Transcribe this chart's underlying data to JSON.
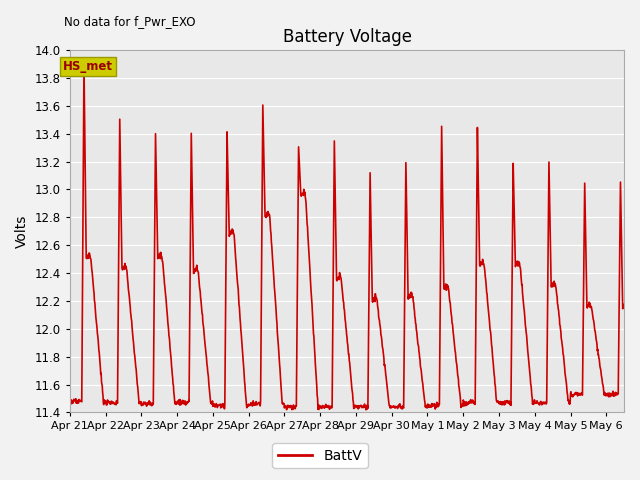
{
  "title": "Battery Voltage",
  "ylabel": "Volts",
  "note": "No data for f_Pwr_EXO",
  "legend_label": "BattV",
  "line_color": "#cc0000",
  "fig_facecolor": "#f2f2f2",
  "plot_facecolor": "#e8e8e8",
  "ylim": [
    11.4,
    14.0
  ],
  "xlim": [
    0,
    15.5
  ],
  "yticks": [
    11.4,
    11.6,
    11.8,
    12.0,
    12.2,
    12.4,
    12.6,
    12.8,
    13.0,
    13.2,
    13.4,
    13.6,
    13.8,
    14.0
  ],
  "xtick_positions": [
    0,
    1,
    2,
    3,
    4,
    5,
    6,
    7,
    8,
    9,
    10,
    11,
    12,
    13,
    14,
    15
  ],
  "xtick_labels": [
    "Apr 21",
    "Apr 22",
    "Apr 23",
    "Apr 24",
    "Apr 25",
    "Apr 26",
    "Apr 27",
    "Apr 28",
    "Apr 29",
    "Apr 30",
    "May 1",
    "May 2",
    "May 3",
    "May 4",
    "May 5",
    "May 6"
  ],
  "hs_met_box_facecolor": "#cccc00",
  "hs_met_box_edgecolor": "#999900",
  "hs_met_text_color": "#990000",
  "peaks": [
    13.9,
    13.5,
    13.4,
    13.4,
    13.4,
    13.6,
    13.3,
    13.35,
    13.1,
    13.2,
    13.45,
    13.45,
    13.2,
    13.2,
    13.05,
    13.05
  ],
  "shoulders": [
    12.5,
    12.42,
    12.5,
    12.4,
    12.67,
    12.8,
    12.95,
    12.35,
    12.2,
    12.22,
    12.28,
    12.45,
    12.45,
    12.3,
    12.15,
    12.15
  ],
  "troughs": [
    11.48,
    11.47,
    11.46,
    11.47,
    11.45,
    11.46,
    11.44,
    11.44,
    11.44,
    11.44,
    11.45,
    11.47,
    11.47,
    11.47,
    11.53,
    11.53
  ],
  "linewidth": 1.2
}
